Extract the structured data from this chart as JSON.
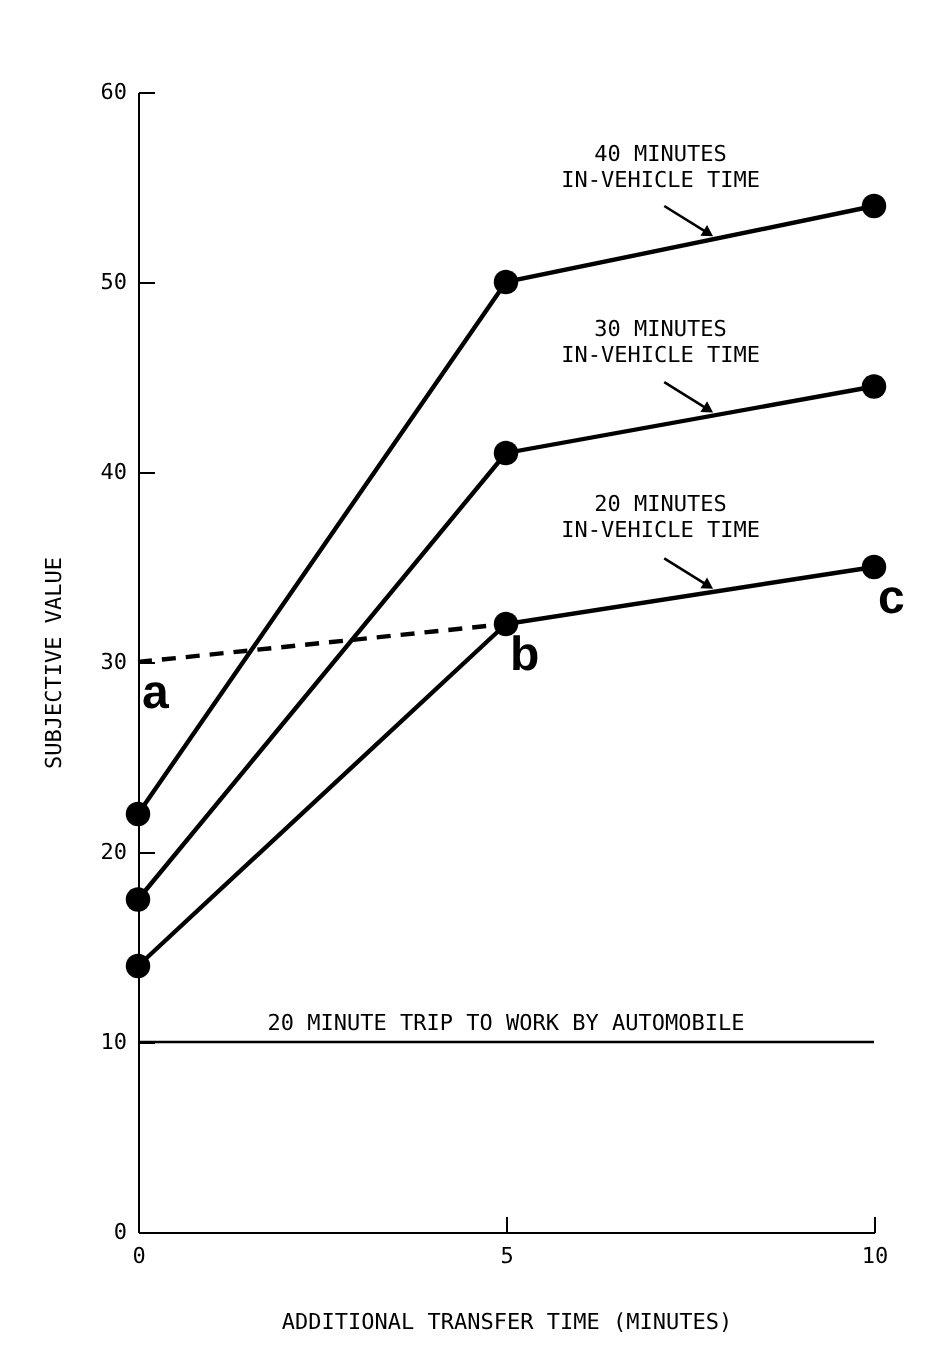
{
  "chart_data": {
    "type": "line",
    "xlabel": "ADDITIONAL TRANSFER TIME (MINUTES)",
    "ylabel": "SUBJECTIVE VALUE",
    "x": [
      0,
      5,
      10
    ],
    "series": [
      {
        "name": "40 MINUTES\nIN-VEHICLE TIME",
        "color": "#000000",
        "values": [
          22,
          50,
          54
        ]
      },
      {
        "name": "30 MINUTES\nIN-VEHICLE TIME",
        "color": "#000000",
        "values": [
          17.5,
          41,
          44.5
        ]
      },
      {
        "name": "20 MINUTES\nIN-VEHICLE TIME",
        "color": "#000000",
        "values": [
          14,
          32,
          35
        ]
      },
      {
        "color": "#000000",
        "x": [
          0,
          5
        ],
        "values": [
          30,
          32
        ],
        "line_style": "dashed",
        "marker": "none"
      }
    ],
    "xlim": [
      0,
      10
    ],
    "xticks": [
      0,
      5,
      10
    ],
    "ylim": [
      0,
      60
    ],
    "yticks": [
      0,
      10,
      20,
      30,
      40,
      50,
      60
    ],
    "ref_lines": [
      {
        "axis": "y",
        "value": 10,
        "label": "20 MINUTE TRIP TO WORK BY AUTOMOBILE",
        "color": "#000000"
      }
    ],
    "annotations": [
      {
        "text": "a",
        "x": 0,
        "y": 30
      },
      {
        "text": "b",
        "x": 5,
        "y": 32
      },
      {
        "text": "c",
        "x": 10,
        "y": 35
      }
    ],
    "marker": "circle",
    "line_style": "solid",
    "grid": false
  }
}
